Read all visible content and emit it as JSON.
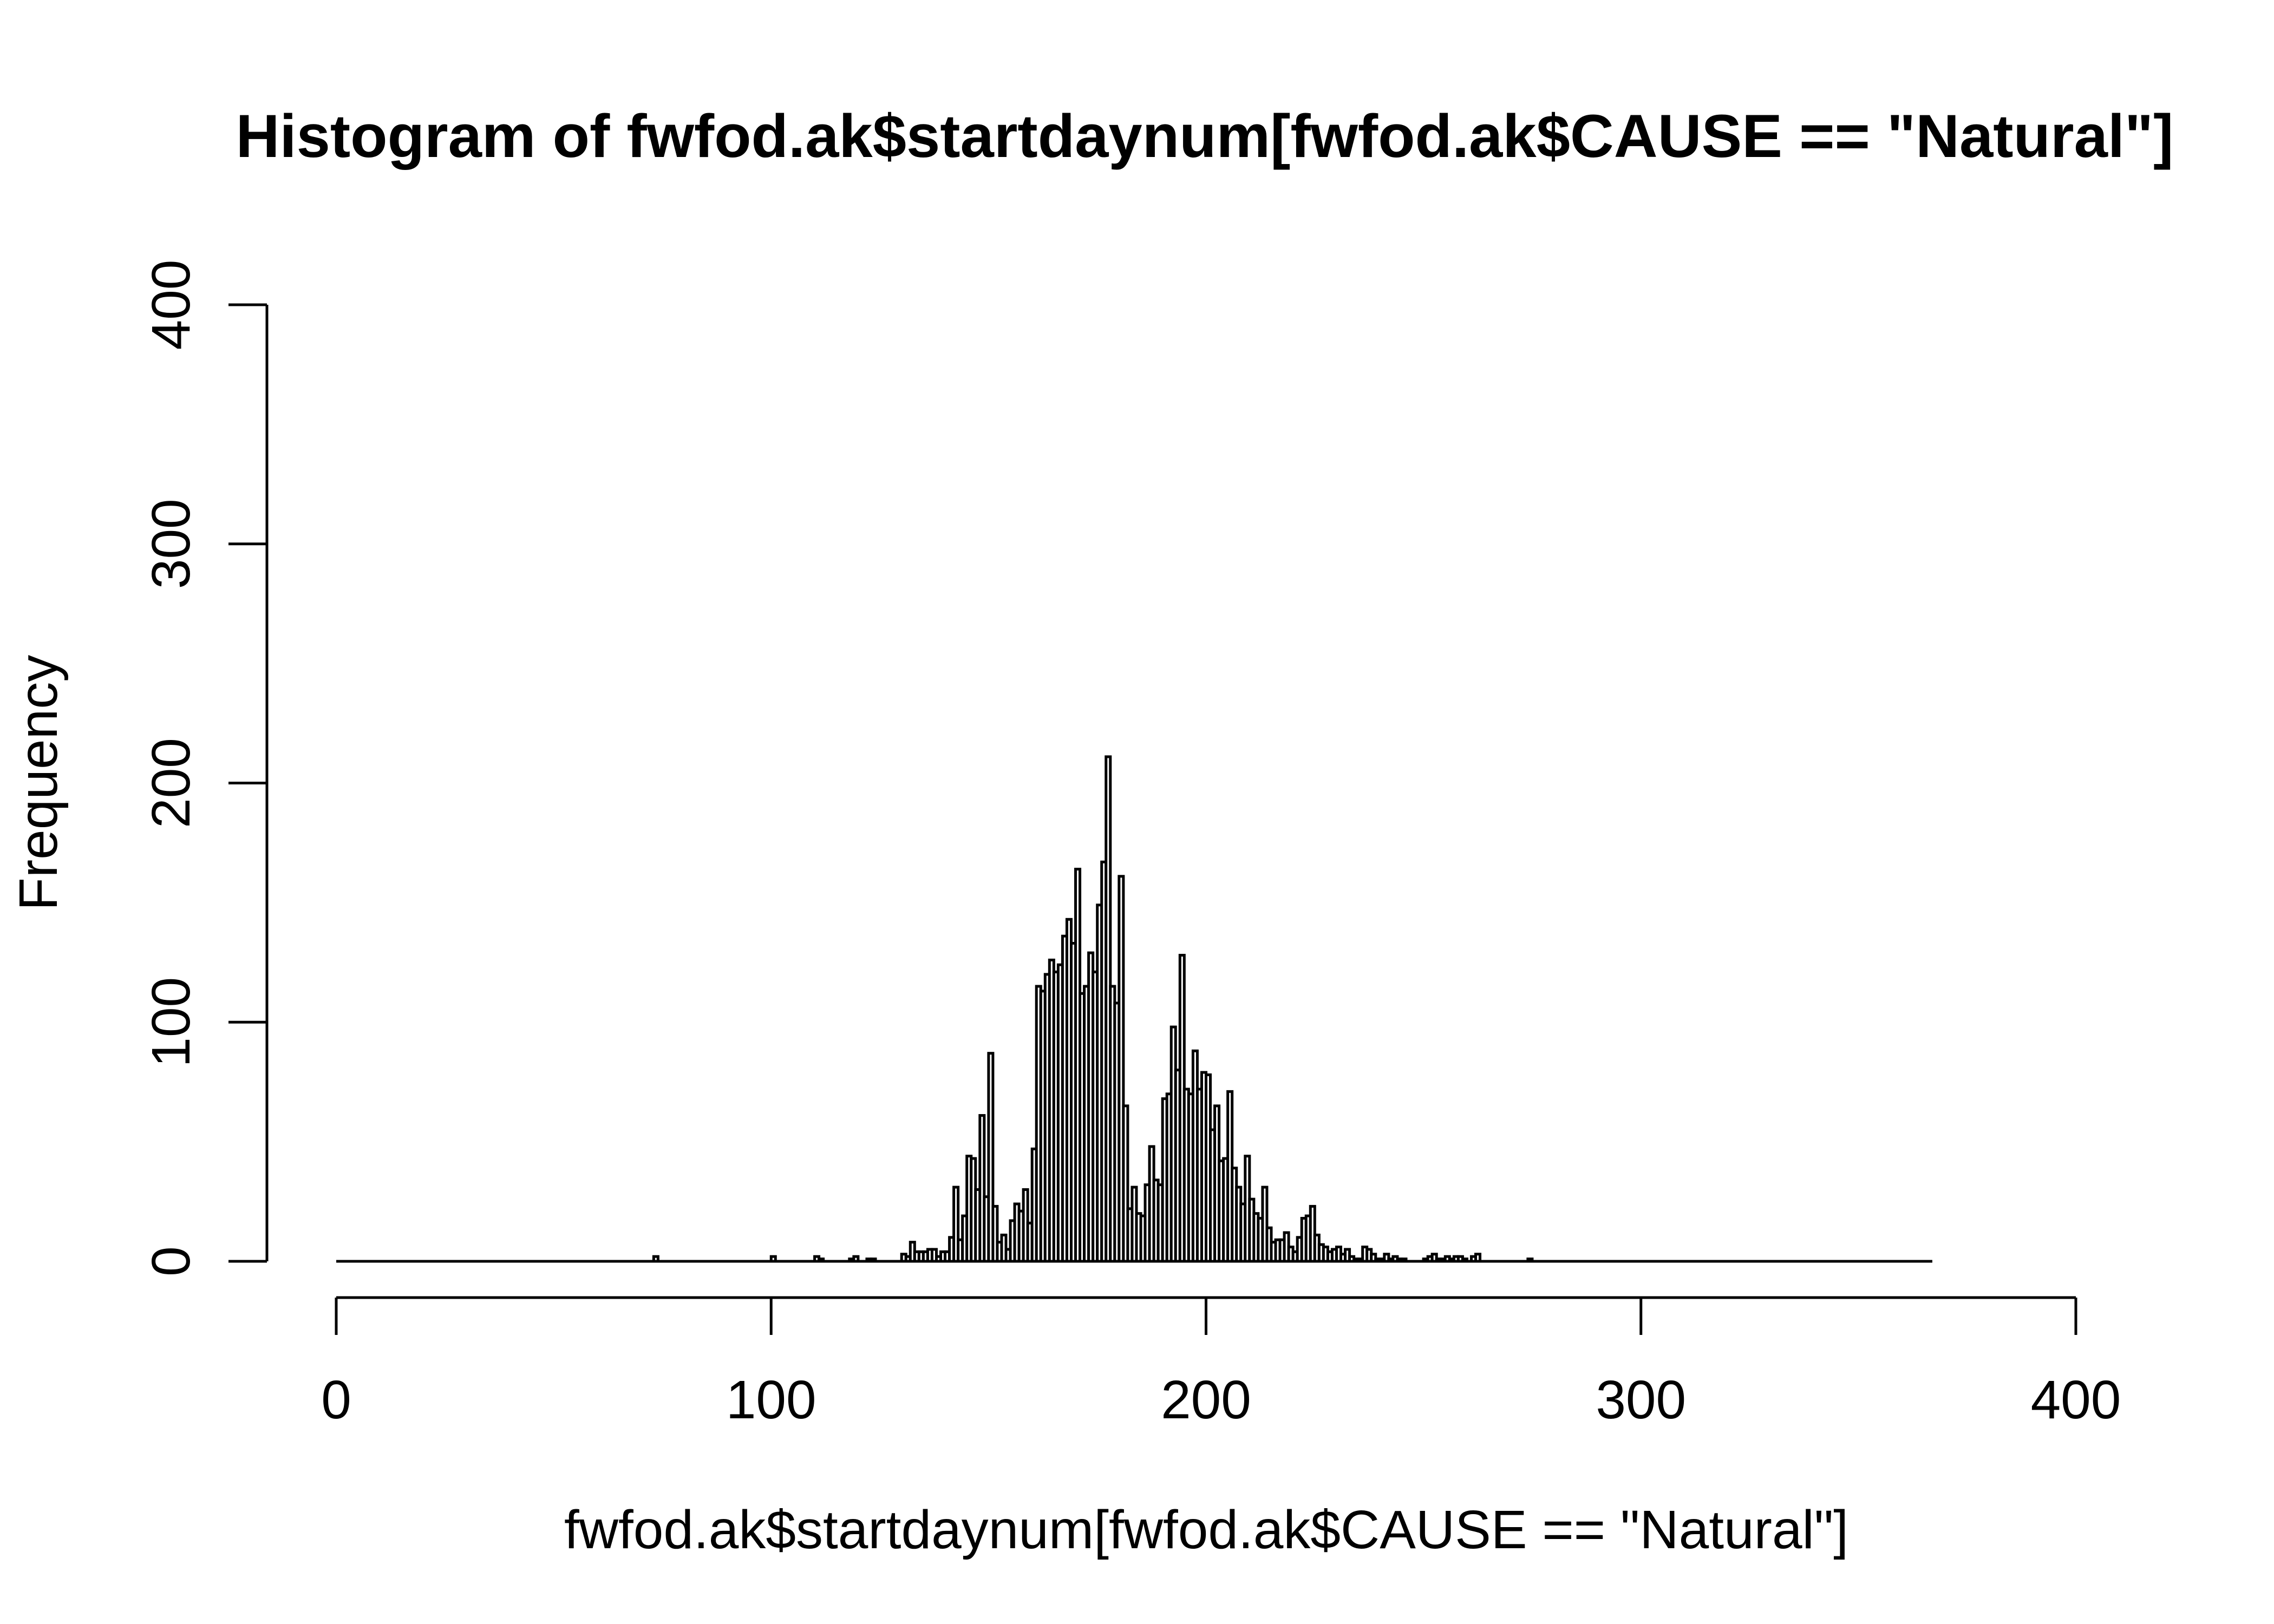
{
  "chart_data": {
    "type": "bar",
    "title": "Histogram of fwfod.ak$startdaynum[fwfod.ak$CAUSE == \"Natural\"]",
    "xlabel": "fwfod.ak$startdaynum[fwfod.ak$CAUSE == \"Natural\"]",
    "ylabel": "Frequency",
    "xlim": [
      0,
      400
    ],
    "ylim": [
      0,
      400
    ],
    "x_range": [
      0,
      367
    ],
    "bin_width": 1,
    "x_ticks": [
      "0",
      "100",
      "200",
      "300",
      "400"
    ],
    "y_ticks": [
      "0",
      "100",
      "200",
      "300",
      "400"
    ],
    "grid": false,
    "legend": "none",
    "bins": [
      [
        73,
        2
      ],
      [
        100,
        2
      ],
      [
        110,
        2
      ],
      [
        111,
        1
      ],
      [
        118,
        1
      ],
      [
        119,
        2
      ],
      [
        122,
        1
      ],
      [
        123,
        1
      ],
      [
        130,
        3
      ],
      [
        131,
        2
      ],
      [
        132,
        8
      ],
      [
        133,
        4
      ],
      [
        134,
        4
      ],
      [
        135,
        4
      ],
      [
        136,
        5
      ],
      [
        137,
        5
      ],
      [
        138,
        2
      ],
      [
        139,
        4
      ],
      [
        140,
        4
      ],
      [
        141,
        10
      ],
      [
        142,
        31
      ],
      [
        143,
        9
      ],
      [
        144,
        19
      ],
      [
        145,
        44
      ],
      [
        146,
        43
      ],
      [
        147,
        30
      ],
      [
        148,
        61
      ],
      [
        149,
        27
      ],
      [
        150,
        87
      ],
      [
        151,
        23
      ],
      [
        152,
        8
      ],
      [
        153,
        11
      ],
      [
        154,
        5
      ],
      [
        155,
        17
      ],
      [
        156,
        24
      ],
      [
        157,
        21
      ],
      [
        158,
        30
      ],
      [
        159,
        16
      ],
      [
        160,
        47
      ],
      [
        161,
        115
      ],
      [
        162,
        113
      ],
      [
        163,
        120
      ],
      [
        164,
        126
      ],
      [
        165,
        121
      ],
      [
        166,
        124
      ],
      [
        167,
        136
      ],
      [
        168,
        143
      ],
      [
        169,
        133
      ],
      [
        170,
        164
      ],
      [
        171,
        112
      ],
      [
        172,
        115
      ],
      [
        173,
        129
      ],
      [
        174,
        121
      ],
      [
        175,
        149
      ],
      [
        176,
        167
      ],
      [
        177,
        211
      ],
      [
        178,
        115
      ],
      [
        179,
        108
      ],
      [
        180,
        161
      ],
      [
        181,
        65
      ],
      [
        182,
        22
      ],
      [
        183,
        31
      ],
      [
        184,
        20
      ],
      [
        185,
        19
      ],
      [
        186,
        32
      ],
      [
        187,
        48
      ],
      [
        188,
        34
      ],
      [
        189,
        32
      ],
      [
        190,
        68
      ],
      [
        191,
        70
      ],
      [
        192,
        98
      ],
      [
        193,
        80
      ],
      [
        194,
        128
      ],
      [
        195,
        72
      ],
      [
        196,
        70
      ],
      [
        197,
        88
      ],
      [
        198,
        72
      ],
      [
        199,
        79
      ],
      [
        200,
        78
      ],
      [
        201,
        55
      ],
      [
        202,
        65
      ],
      [
        203,
        42
      ],
      [
        204,
        43
      ],
      [
        205,
        71
      ],
      [
        206,
        39
      ],
      [
        207,
        31
      ],
      [
        208,
        24
      ],
      [
        209,
        44
      ],
      [
        210,
        26
      ],
      [
        211,
        20
      ],
      [
        212,
        18
      ],
      [
        213,
        31
      ],
      [
        214,
        14
      ],
      [
        215,
        8
      ],
      [
        216,
        9
      ],
      [
        217,
        9
      ],
      [
        218,
        12
      ],
      [
        219,
        6
      ],
      [
        220,
        4
      ],
      [
        221,
        10
      ],
      [
        222,
        18
      ],
      [
        223,
        19
      ],
      [
        224,
        23
      ],
      [
        225,
        11
      ],
      [
        226,
        7
      ],
      [
        227,
        6
      ],
      [
        228,
        4
      ],
      [
        229,
        5
      ],
      [
        230,
        6
      ],
      [
        231,
        3
      ],
      [
        232,
        5
      ],
      [
        233,
        2
      ],
      [
        234,
        1
      ],
      [
        235,
        1
      ],
      [
        236,
        6
      ],
      [
        237,
        5
      ],
      [
        238,
        3
      ],
      [
        239,
        1
      ],
      [
        240,
        1
      ],
      [
        241,
        3
      ],
      [
        242,
        1
      ],
      [
        243,
        2
      ],
      [
        244,
        1
      ],
      [
        245,
        1
      ],
      [
        250,
        1
      ],
      [
        251,
        2
      ],
      [
        252,
        3
      ],
      [
        253,
        1
      ],
      [
        254,
        1
      ],
      [
        255,
        2
      ],
      [
        256,
        1
      ],
      [
        257,
        2
      ],
      [
        258,
        2
      ],
      [
        259,
        1
      ],
      [
        261,
        2
      ],
      [
        262,
        3
      ],
      [
        274,
        1
      ]
    ]
  }
}
